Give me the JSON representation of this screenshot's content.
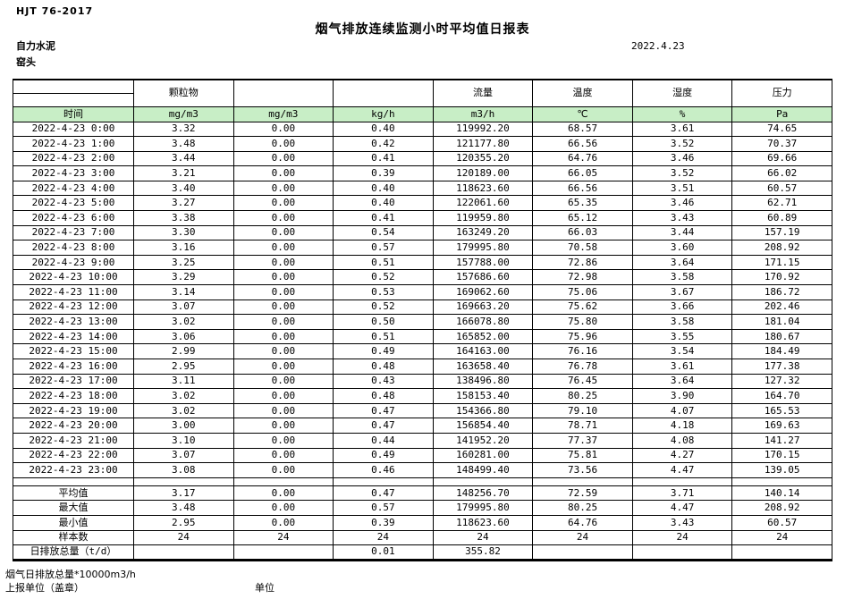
{
  "page": {
    "standard": "HJT  76-2017",
    "title": "烟气排放连续监测小时平均值日报表",
    "date": "2022.4.23",
    "company": "自力水泥",
    "station": "窑头"
  },
  "colors": {
    "header_green": "#c8eec6"
  },
  "table": {
    "time_label": "时间",
    "groups": [
      "颗粒物",
      "",
      "",
      "流量",
      "温度",
      "湿度",
      "压力"
    ],
    "units": [
      "mg/m3",
      "mg/m3",
      "kg/h",
      "m3/h",
      "℃",
      "%",
      "Pa"
    ],
    "rows": [
      {
        "time": "2022-4-23 0:00",
        "values": [
          "3.32",
          "0.00",
          "0.40",
          "119992.20",
          "68.57",
          "3.61",
          "74.65"
        ]
      },
      {
        "time": "2022-4-23 1:00",
        "values": [
          "3.48",
          "0.00",
          "0.42",
          "121177.80",
          "66.56",
          "3.52",
          "70.37"
        ]
      },
      {
        "time": "2022-4-23 2:00",
        "values": [
          "3.44",
          "0.00",
          "0.41",
          "120355.20",
          "64.76",
          "3.46",
          "69.66"
        ]
      },
      {
        "time": "2022-4-23 3:00",
        "values": [
          "3.21",
          "0.00",
          "0.39",
          "120189.00",
          "66.05",
          "3.52",
          "66.02"
        ]
      },
      {
        "time": "2022-4-23 4:00",
        "values": [
          "3.40",
          "0.00",
          "0.40",
          "118623.60",
          "66.56",
          "3.51",
          "60.57"
        ]
      },
      {
        "time": "2022-4-23 5:00",
        "values": [
          "3.27",
          "0.00",
          "0.40",
          "122061.60",
          "65.35",
          "3.46",
          "62.71"
        ]
      },
      {
        "time": "2022-4-23 6:00",
        "values": [
          "3.38",
          "0.00",
          "0.41",
          "119959.80",
          "65.12",
          "3.43",
          "60.89"
        ]
      },
      {
        "time": "2022-4-23 7:00",
        "values": [
          "3.30",
          "0.00",
          "0.54",
          "163249.20",
          "66.03",
          "3.44",
          "157.19"
        ]
      },
      {
        "time": "2022-4-23 8:00",
        "values": [
          "3.16",
          "0.00",
          "0.57",
          "179995.80",
          "70.58",
          "3.60",
          "208.92"
        ]
      },
      {
        "time": "2022-4-23 9:00",
        "values": [
          "3.25",
          "0.00",
          "0.51",
          "157788.00",
          "72.86",
          "3.64",
          "171.15"
        ]
      },
      {
        "time": "2022-4-23 10:00",
        "values": [
          "3.29",
          "0.00",
          "0.52",
          "157686.60",
          "72.98",
          "3.58",
          "170.92"
        ]
      },
      {
        "time": "2022-4-23 11:00",
        "values": [
          "3.14",
          "0.00",
          "0.53",
          "169062.60",
          "75.06",
          "3.67",
          "186.72"
        ]
      },
      {
        "time": "2022-4-23 12:00",
        "values": [
          "3.07",
          "0.00",
          "0.52",
          "169663.20",
          "75.62",
          "3.66",
          "202.46"
        ]
      },
      {
        "time": "2022-4-23 13:00",
        "values": [
          "3.02",
          "0.00",
          "0.50",
          "166078.80",
          "75.80",
          "3.58",
          "181.04"
        ]
      },
      {
        "time": "2022-4-23 14:00",
        "values": [
          "3.06",
          "0.00",
          "0.51",
          "165852.00",
          "75.96",
          "3.55",
          "180.67"
        ]
      },
      {
        "time": "2022-4-23 15:00",
        "values": [
          "2.99",
          "0.00",
          "0.49",
          "164163.00",
          "76.16",
          "3.54",
          "184.49"
        ]
      },
      {
        "time": "2022-4-23 16:00",
        "values": [
          "2.95",
          "0.00",
          "0.48",
          "163658.40",
          "76.78",
          "3.61",
          "177.38"
        ]
      },
      {
        "time": "2022-4-23 17:00",
        "values": [
          "3.11",
          "0.00",
          "0.43",
          "138496.80",
          "76.45",
          "3.64",
          "127.32"
        ]
      },
      {
        "time": "2022-4-23 18:00",
        "values": [
          "3.02",
          "0.00",
          "0.48",
          "158153.40",
          "80.25",
          "3.90",
          "164.70"
        ]
      },
      {
        "time": "2022-4-23 19:00",
        "values": [
          "3.02",
          "0.00",
          "0.47",
          "154366.80",
          "79.10",
          "4.07",
          "165.53"
        ]
      },
      {
        "time": "2022-4-23 20:00",
        "values": [
          "3.00",
          "0.00",
          "0.47",
          "156854.40",
          "78.71",
          "4.18",
          "169.63"
        ]
      },
      {
        "time": "2022-4-23 21:00",
        "values": [
          "3.10",
          "0.00",
          "0.44",
          "141952.20",
          "77.37",
          "4.08",
          "141.27"
        ]
      },
      {
        "time": "2022-4-23 22:00",
        "values": [
          "3.07",
          "0.00",
          "0.49",
          "160281.00",
          "75.81",
          "4.27",
          "170.15"
        ]
      },
      {
        "time": "2022-4-23 23:00",
        "values": [
          "3.08",
          "0.00",
          "0.46",
          "148499.40",
          "73.56",
          "4.47",
          "139.05"
        ]
      }
    ],
    "summary": [
      {
        "label": "平均值",
        "values": [
          "3.17",
          "0.00",
          "0.47",
          "148256.70",
          "72.59",
          "3.71",
          "140.14"
        ]
      },
      {
        "label": "最大值",
        "values": [
          "3.48",
          "0.00",
          "0.57",
          "179995.80",
          "80.25",
          "4.47",
          "208.92"
        ]
      },
      {
        "label": "最小值",
        "values": [
          "2.95",
          "0.00",
          "0.39",
          "118623.60",
          "64.76",
          "3.43",
          "60.57"
        ]
      },
      {
        "label": "样本数",
        "values": [
          "24",
          "24",
          "24",
          "24",
          "24",
          "24",
          "24"
        ]
      },
      {
        "label": "日排放总量（t/d）",
        "values": [
          "",
          "",
          "0.01",
          "355.82",
          "",
          "",
          ""
        ]
      }
    ]
  },
  "footer": {
    "note": "烟气日排放总量*10000m3/h",
    "report_unit": "上报单位（盖章）",
    "unit_label": "单位"
  }
}
